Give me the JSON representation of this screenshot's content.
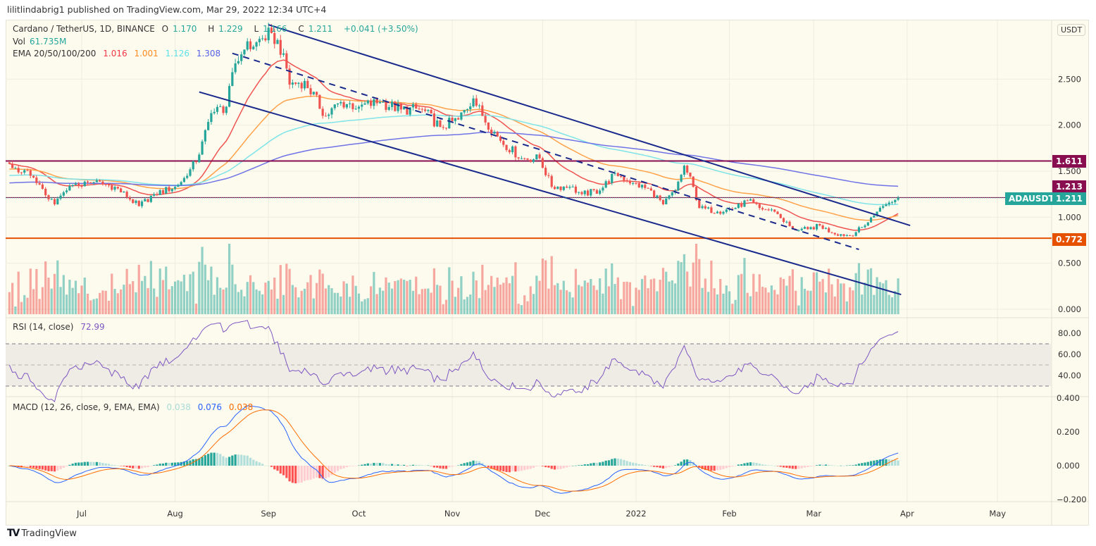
{
  "publisher_line": "lilitlindabrig1 published on TradingView.com, Mar 29, 2022 12:34 UTC+4",
  "legend": {
    "symbol": "Cardano / TetherUS, 1D, BINANCE",
    "open_label": "O",
    "open": "1.170",
    "high_label": "H",
    "high": "1.229",
    "low_label": "L",
    "low": "1.166",
    "close_label": "C",
    "close": "1.211",
    "change": "+0.041 (+3.50%)",
    "vol_label": "Vol",
    "vol": "61.735M",
    "ema_label": "EMA 20/50/100/200",
    "ema20": "1.016",
    "ema50": "1.001",
    "ema100": "1.126",
    "ema200": "1.308",
    "rsi_label": "RSI (14, close)",
    "rsi": "72.99",
    "macd_label": "MACD (12, 26, close, 9, EMA, EMA)",
    "macd_hist": "0.038",
    "macd": "0.076",
    "macd_signal": "0.038"
  },
  "currency_button": "USDT",
  "footer_brand": "TradingView",
  "colors": {
    "up": "#26a69a",
    "down": "#ef5350",
    "ema20": "#ef5350",
    "ema50": "#ffa24a",
    "ema100": "#7fe3e8",
    "ema200": "#6f73e6",
    "rsi": "#7e57c2",
    "macd": "#2962ff",
    "signal": "#ff6d00",
    "channel": "#1a2a8c",
    "resistance": "#880e4f",
    "support": "#e65100"
  },
  "chart_data": {
    "type": "candlestick",
    "symbol": "ADAUSDT",
    "interval": "1D",
    "price_axis_ticks": [
      "2.500",
      "2.000",
      "1.500",
      "1.000",
      "0.500",
      "0.000"
    ],
    "rsi_axis_ticks": [
      "80.00",
      "60.00",
      "40.00"
    ],
    "rsi_bands": [
      70,
      50,
      30
    ],
    "macd_axis_ticks": [
      "0.400",
      "0.200",
      "0.000",
      "−0.200"
    ],
    "time_axis_ticks": [
      {
        "label": "Jul",
        "date": "2021-07-01"
      },
      {
        "label": "Aug",
        "date": "2021-08-01"
      },
      {
        "label": "Sep",
        "date": "2021-09-01"
      },
      {
        "label": "Oct",
        "date": "2021-10-01"
      },
      {
        "label": "Nov",
        "date": "2021-11-01"
      },
      {
        "label": "Dec",
        "date": "2021-12-01"
      },
      {
        "label": "2022",
        "date": "2022-01-01"
      },
      {
        "label": "Feb",
        "date": "2022-02-01"
      },
      {
        "label": "Mar",
        "date": "2022-03-01"
      },
      {
        "label": "Apr",
        "date": "2022-04-01"
      },
      {
        "label": "May",
        "date": "2022-05-01"
      }
    ],
    "close_path": [
      [
        "2021-06-07",
        1.58
      ],
      [
        "2021-06-14",
        1.45
      ],
      [
        "2021-06-22",
        1.14
      ],
      [
        "2021-06-28",
        1.35
      ],
      [
        "2021-07-05",
        1.38
      ],
      [
        "2021-07-12",
        1.33
      ],
      [
        "2021-07-20",
        1.12
      ],
      [
        "2021-07-25",
        1.25
      ],
      [
        "2021-08-01",
        1.33
      ],
      [
        "2021-08-05",
        1.45
      ],
      [
        "2021-08-09",
        1.68
      ],
      [
        "2021-08-13",
        2.13
      ],
      [
        "2021-08-18",
        2.2
      ],
      [
        "2021-08-21",
        2.67
      ],
      [
        "2021-08-24",
        2.82
      ],
      [
        "2021-08-28",
        2.9
      ],
      [
        "2021-09-02",
        3.0
      ],
      [
        "2021-09-06",
        2.78
      ],
      [
        "2021-09-08",
        2.44
      ],
      [
        "2021-09-13",
        2.48
      ],
      [
        "2021-09-20",
        2.1
      ],
      [
        "2021-09-25",
        2.25
      ],
      [
        "2021-10-01",
        2.2
      ],
      [
        "2021-10-08",
        2.25
      ],
      [
        "2021-10-15",
        2.17
      ],
      [
        "2021-10-22",
        2.17
      ],
      [
        "2021-10-28",
        1.98
      ],
      [
        "2021-11-03",
        2.06
      ],
      [
        "2021-11-08",
        2.29
      ],
      [
        "2021-11-11",
        2.1
      ],
      [
        "2021-11-17",
        1.83
      ],
      [
        "2021-11-24",
        1.64
      ],
      [
        "2021-11-30",
        1.64
      ],
      [
        "2021-12-04",
        1.33
      ],
      [
        "2021-12-10",
        1.33
      ],
      [
        "2021-12-14",
        1.25
      ],
      [
        "2021-12-20",
        1.29
      ],
      [
        "2021-12-25",
        1.48
      ],
      [
        "2021-12-31",
        1.37
      ],
      [
        "2022-01-06",
        1.29
      ],
      [
        "2022-01-10",
        1.14
      ],
      [
        "2022-01-14",
        1.29
      ],
      [
        "2022-01-17",
        1.56
      ],
      [
        "2022-01-20",
        1.33
      ],
      [
        "2022-01-22",
        1.1
      ],
      [
        "2022-01-28",
        1.06
      ],
      [
        "2022-02-03",
        1.1
      ],
      [
        "2022-02-07",
        1.18
      ],
      [
        "2022-02-11",
        1.1
      ],
      [
        "2022-02-16",
        1.06
      ],
      [
        "2022-02-22",
        0.87
      ],
      [
        "2022-02-27",
        0.87
      ],
      [
        "2022-03-03",
        0.91
      ],
      [
        "2022-03-07",
        0.83
      ],
      [
        "2022-03-13",
        0.8
      ],
      [
        "2022-03-18",
        0.91
      ],
      [
        "2022-03-22",
        1.06
      ],
      [
        "2022-03-25",
        1.14
      ],
      [
        "2022-03-29",
        1.211
      ]
    ],
    "trendlines": [
      {
        "name": "channel-upper",
        "style": "solid",
        "from": [
          "2021-09-01",
          3.09
        ],
        "to": [
          "2022-04-02",
          0.91
        ]
      },
      {
        "name": "channel-lower",
        "style": "solid",
        "from": [
          "2021-08-09",
          2.36
        ],
        "to": [
          "2022-03-30",
          0.16
        ]
      },
      {
        "name": "channel-mid",
        "style": "dashed",
        "from": [
          "2021-08-20",
          2.78
        ],
        "to": [
          "2022-03-16",
          0.65
        ]
      }
    ],
    "horizontal_levels": [
      {
        "value": 1.611,
        "label": "1.611",
        "color": "#880e4f"
      },
      {
        "value": 1.213,
        "label": "1.213",
        "color": "#880e4f"
      },
      {
        "value": 0.772,
        "label": "0.772",
        "color": "#e65100"
      }
    ],
    "last_price": {
      "label": "ADAUSDT",
      "value": "1.211"
    }
  }
}
